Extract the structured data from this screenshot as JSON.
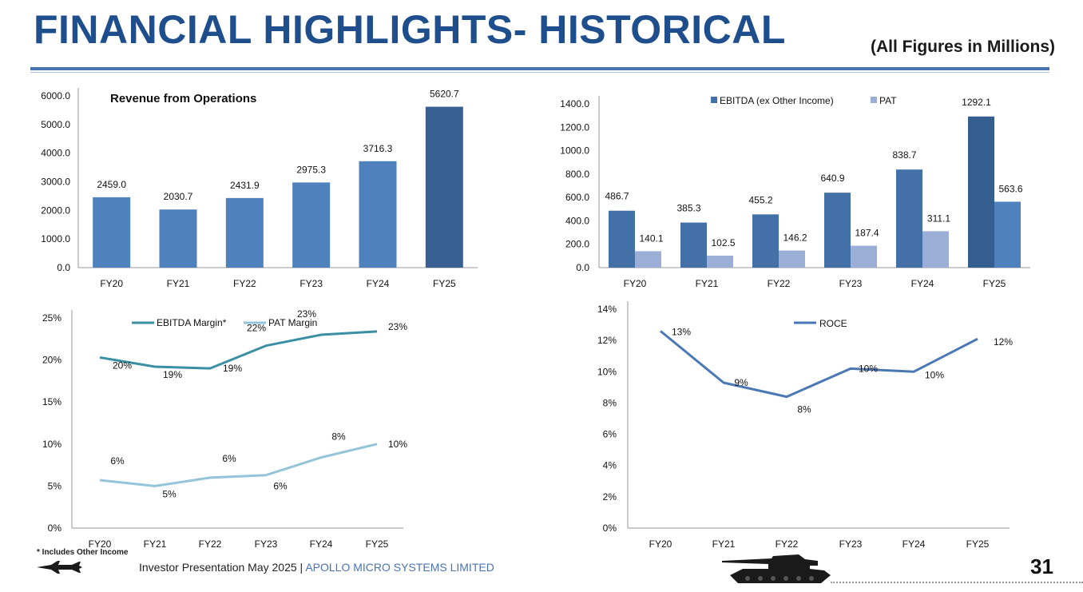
{
  "header": {
    "title": "FINANCIAL HIGHLIGHTS- HISTORICAL",
    "subtitle": "(All Figures in Millions)"
  },
  "footer": {
    "footnote": "* Includes Other Income",
    "presentation": "Investor Presentation May 2025 |",
    "company": "APOLLO MICRO SYSTEMS LIMITED",
    "page_number": "31",
    "jet_icon": "fighter-jet-icon",
    "tank_icon": "tank-icon"
  },
  "colors": {
    "title": "#1f4e8c",
    "bar_revenue": "#4f81bd",
    "bar_revenue_highlight": "#375f91",
    "ebitda": "#4470a8",
    "ebitda_highlight": "#335e8f",
    "pat": "#9aaed6",
    "pat_highlight": "#4f81bd",
    "ebitda_margin_line": "#3a8fa3",
    "pat_margin_line": "#93c4d8",
    "roce_line": "#4a78b4"
  },
  "chart_data": [
    {
      "type": "bar",
      "title": "Revenue from Operations",
      "categories": [
        "FY20",
        "FY21",
        "FY22",
        "FY23",
        "FY24",
        "FY25"
      ],
      "values": [
        2459.0,
        2030.7,
        2431.9,
        2975.3,
        3716.3,
        5620.7
      ],
      "value_labels": [
        "2459.0",
        "2030.7",
        "2431.9",
        "2975.3",
        "3716.3",
        "5620.7"
      ],
      "yticks": [
        "0.0",
        "1000.0",
        "2000.0",
        "3000.0",
        "4000.0",
        "5000.0",
        "6000.0"
      ],
      "ylim": [
        0,
        6000
      ],
      "grid": false
    },
    {
      "type": "bar",
      "categories": [
        "FY20",
        "FY21",
        "FY22",
        "FY23",
        "FY24",
        "FY25"
      ],
      "series": [
        {
          "name": "EBITDA (ex Other Income)",
          "values": [
            486.7,
            385.3,
            455.2,
            640.9,
            838.7,
            1292.1
          ],
          "labels": [
            "486.7",
            "385.3",
            "455.2",
            "640.9",
            "838.7",
            "1292.1"
          ]
        },
        {
          "name": "PAT",
          "values": [
            140.1,
            102.5,
            146.2,
            187.4,
            311.1,
            563.6
          ],
          "labels": [
            "140.1",
            "102.5",
            "146.2",
            "187.4",
            "311.1",
            "563.6"
          ]
        }
      ],
      "yticks": [
        "0.0",
        "200.0",
        "400.0",
        "600.0",
        "800.0",
        "1000.0",
        "1200.0",
        "1400.0"
      ],
      "ylim": [
        0,
        1400
      ],
      "legend": "top",
      "grid": false
    },
    {
      "type": "line",
      "categories": [
        "FY20",
        "FY21",
        "FY22",
        "FY23",
        "FY24",
        "FY25"
      ],
      "series": [
        {
          "name": "EBITDA Margin*",
          "values": [
            20.3,
            19.2,
            19.0,
            21.7,
            23.0,
            23.4
          ],
          "labels": [
            "20%",
            "19%",
            "19%",
            "22%",
            "23%",
            "23%"
          ]
        },
        {
          "name": "PAT Margin",
          "values": [
            5.7,
            5.0,
            6.0,
            6.3,
            8.4,
            10.0
          ],
          "labels": [
            "6%",
            "5%",
            "6%",
            "6%",
            "8%",
            "10%"
          ]
        }
      ],
      "yticks": [
        "0%",
        "5%",
        "10%",
        "15%",
        "20%",
        "25%"
      ],
      "ylim": [
        0,
        25
      ],
      "legend": "top",
      "grid": false
    },
    {
      "type": "line",
      "categories": [
        "FY20",
        "FY21",
        "FY22",
        "FY23",
        "FY24",
        "FY25"
      ],
      "series": [
        {
          "name": "ROCE",
          "values": [
            12.6,
            9.3,
            8.4,
            10.2,
            10.0,
            12.1
          ],
          "labels": [
            "13%",
            "9%",
            "8%",
            "10%",
            "10%",
            "12%"
          ]
        }
      ],
      "yticks": [
        "0%",
        "2%",
        "4%",
        "6%",
        "8%",
        "10%",
        "12%",
        "14%"
      ],
      "ylim": [
        0,
        14
      ],
      "legend": "top",
      "grid": false
    }
  ]
}
